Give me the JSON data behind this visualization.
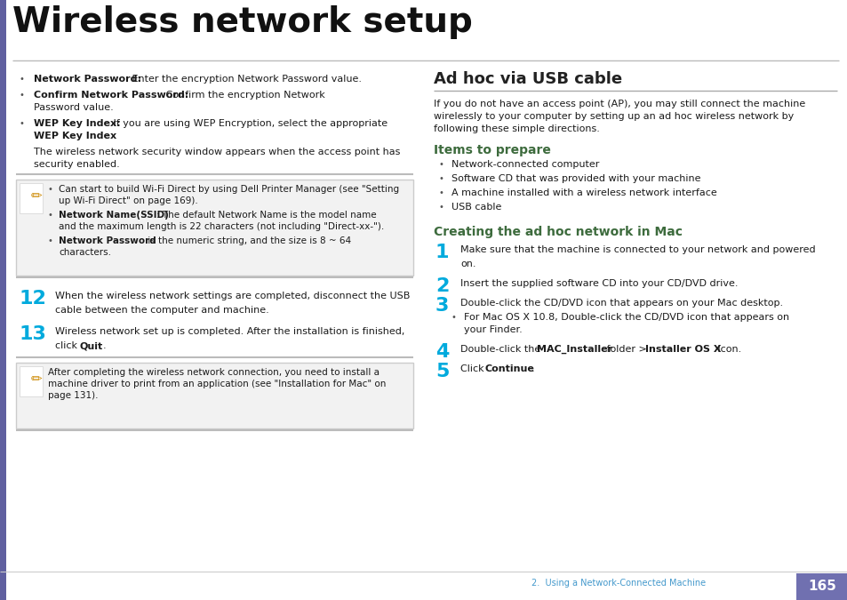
{
  "bg_color": "#ffffff",
  "title": "Wireless network setup",
  "title_color": "#1a1a1a",
  "left_bar_color": "#6060a0",
  "page_number": "165",
  "page_number_bg": "#7070b0",
  "footer_text": "2.  Using a Network-Connected Machine",
  "footer_color": "#4499cc",
  "cyan_color": "#00aadd",
  "note_bg_color": "#f0f0f0",
  "note_border_color": "#cccccc",
  "heading_color": "#3d6b3d",
  "divider_color": "#cccccc"
}
